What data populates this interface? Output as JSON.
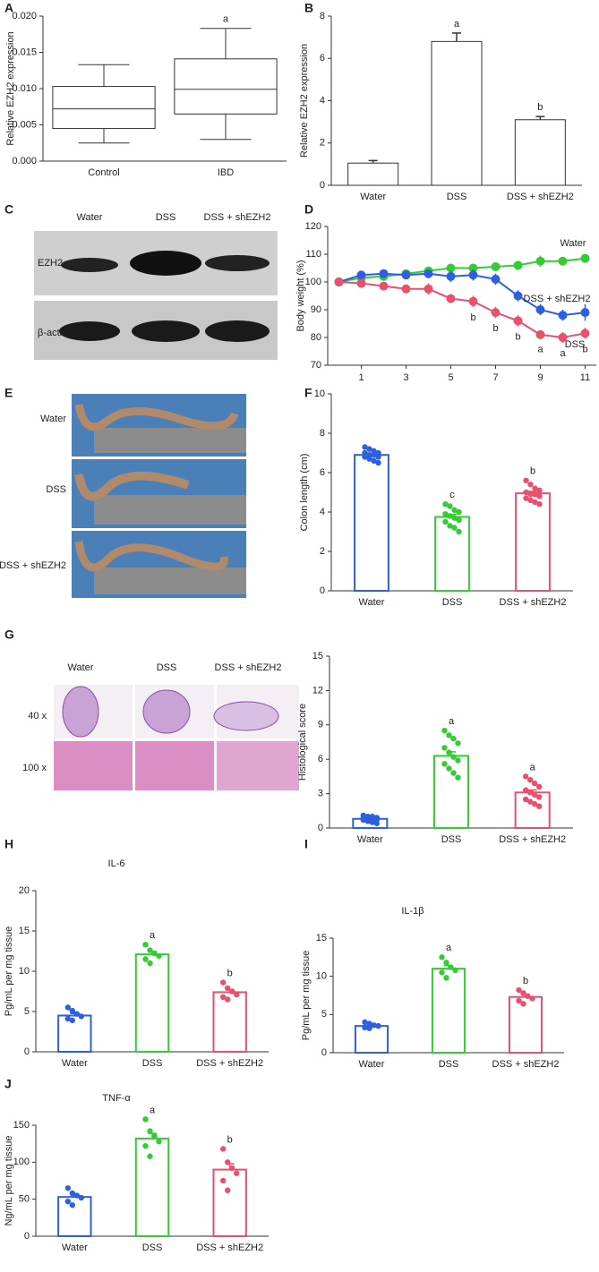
{
  "panel_labels": [
    "A",
    "B",
    "C",
    "D",
    "E",
    "F",
    "G",
    "H",
    "I",
    "J"
  ],
  "blot": {
    "lanes": [
      "Water",
      "DSS",
      "DSS + shEZH2"
    ],
    "rows": [
      "EZH2",
      "β-actin"
    ]
  },
  "colon_photo": {
    "labels": [
      "Water",
      "DSS",
      "DSS + shEZH2"
    ]
  },
  "histology": {
    "columns": [
      "Water",
      "DSS",
      "DSS + shEZH2"
    ],
    "rows": [
      "40 x",
      "100 x"
    ]
  },
  "chart_data": [
    {
      "type": "box",
      "y_label": "Relative EZH2 expression",
      "categories": [
        "Control",
        "IBD"
      ],
      "stats": [
        {
          "min": 0.0025,
          "q1": 0.0045,
          "median": 0.0072,
          "q3": 0.0103,
          "max": 0.0133
        },
        {
          "min": 0.003,
          "q1": 0.0065,
          "median": 0.0099,
          "q3": 0.0141,
          "max": 0.0183
        }
      ],
      "annotations": [
        null,
        "a"
      ],
      "color": "#333333",
      "ylim": [
        0,
        0.02
      ],
      "yticks": [
        {
          "value": 0,
          "label": "0.000"
        },
        {
          "value": 0.005,
          "label": "0.005"
        },
        {
          "value": 0.01,
          "label": "0.010"
        },
        {
          "value": 0.015,
          "label": "0.015"
        },
        {
          "value": 0.02,
          "label": "0.020"
        }
      ]
    },
    {
      "type": "bar",
      "y_label": "Relative EZH2 expression",
      "categories": [
        "Water",
        "DSS",
        "DSS + shEZH2"
      ],
      "values": [
        1.05,
        6.8,
        3.1
      ],
      "errors": [
        0.12,
        0.4,
        0.15
      ],
      "annotations": [
        null,
        "a",
        "b"
      ],
      "color": "#333333",
      "ylim": [
        0,
        8
      ],
      "yticks": [
        0,
        2,
        4,
        6,
        8
      ]
    },
    {
      "type": "line",
      "y_label": "Body weight (%)",
      "x": [
        0,
        1,
        2,
        3,
        4,
        5,
        6,
        7,
        8,
        9,
        10,
        11
      ],
      "series": [
        {
          "name": "Water",
          "color": "#33cc33",
          "values": [
            100,
            101.5,
            102,
            103,
            104,
            105,
            105,
            105.5,
            106,
            107.5,
            107.5,
            108.5
          ],
          "errors": [
            0.5,
            1,
            1,
            1.5,
            1.5,
            1.5,
            1.5,
            1.5,
            1.5,
            2,
            1.5,
            1.5
          ]
        },
        {
          "name": "DSS + shEZH2",
          "color": "#2e5fe0",
          "values": [
            100,
            102.5,
            103,
            102.5,
            103,
            102,
            102.5,
            101,
            95,
            90,
            88,
            89
          ],
          "errors": [
            0.5,
            1,
            1.5,
            1.5,
            1.5,
            2,
            2,
            2,
            2,
            2,
            2,
            3
          ]
        },
        {
          "name": "DSS",
          "color": "#e8506e",
          "values": [
            100,
            99.5,
            98.5,
            97.5,
            97.5,
            94,
            93,
            89,
            86,
            81,
            80,
            81.5
          ],
          "errors": [
            0.5,
            1,
            1.5,
            1.5,
            2,
            1.5,
            2,
            2,
            2,
            1.5,
            2,
            2
          ]
        }
      ],
      "annotations": [
        {
          "x": 6,
          "text": "b"
        },
        {
          "x": 7,
          "text": "b"
        },
        {
          "x": 8,
          "text": "b"
        },
        {
          "x": 9,
          "text": "a"
        },
        {
          "x": 10,
          "text": "a"
        },
        {
          "x": 11,
          "text": "b"
        }
      ],
      "xlim": [
        -0.5,
        11.5
      ],
      "xticks": [
        1,
        3,
        5,
        7,
        9,
        11
      ],
      "ylim": [
        70,
        120
      ],
      "yticks": [
        70,
        80,
        90,
        100,
        110,
        120
      ]
    },
    {
      "type": "bar",
      "y_label": "Colon length (cm)",
      "categories": [
        "Water",
        "DSS",
        "DSS + shEZH2"
      ],
      "values": [
        6.9,
        3.75,
        4.95
      ],
      "errors": [
        0.08,
        0.13,
        0.1
      ],
      "annotations": [
        null,
        "c",
        "b"
      ],
      "colors": [
        "#2e5fe0",
        "#33cc33",
        "#e8506e"
      ],
      "points": [
        [
          7.3,
          7.2,
          7.1,
          7.0,
          7.0,
          6.9,
          6.9,
          6.8,
          6.8,
          6.7,
          6.6,
          6.5
        ],
        [
          4.4,
          4.3,
          4.1,
          4.0,
          3.9,
          3.8,
          3.7,
          3.6,
          3.5,
          3.3,
          3.2,
          3.0
        ],
        [
          5.6,
          5.4,
          5.2,
          5.1,
          5.0,
          4.9,
          4.9,
          4.8,
          4.7,
          4.6,
          4.5,
          4.4
        ]
      ],
      "ylim": [
        0,
        10
      ],
      "yticks": [
        0,
        2,
        4,
        6,
        8,
        10
      ]
    },
    {
      "type": "bar",
      "y_label": "Histological score",
      "categories": [
        "Water",
        "DSS",
        "DSS + shEZH2"
      ],
      "values": [
        0.8,
        6.3,
        3.1
      ],
      "errors": [
        0.08,
        0.35,
        0.22
      ],
      "annotations": [
        null,
        "a",
        "a"
      ],
      "colors": [
        "#2e5fe0",
        "#33cc33",
        "#e8506e"
      ],
      "points": [
        [
          1.1,
          1.0,
          1.0,
          0.9,
          0.9,
          0.8,
          0.8,
          0.7,
          0.7,
          0.6,
          0.5,
          0.4
        ],
        [
          8.5,
          8.1,
          7.8,
          7.4,
          7.0,
          6.6,
          6.2,
          5.9,
          5.6,
          5.2,
          4.8,
          4.4
        ],
        [
          4.5,
          4.2,
          3.9,
          3.6,
          3.3,
          3.1,
          2.9,
          2.7,
          2.5,
          2.3,
          2.1,
          1.9
        ]
      ],
      "ylim": [
        0,
        15
      ],
      "yticks": [
        0,
        3,
        6,
        9,
        12,
        15
      ]
    },
    {
      "type": "bar",
      "title": "IL-6",
      "y_label": "Pg/mL per mg tissue",
      "categories": [
        "Water",
        "DSS",
        "DSS + shEZH2"
      ],
      "values": [
        4.5,
        12.1,
        7.4
      ],
      "errors": [
        0.25,
        0.35,
        0.33
      ],
      "annotations": [
        null,
        "a",
        "b"
      ],
      "colors": [
        "#2e5fe0",
        "#33cc33",
        "#e8506e"
      ],
      "points": [
        [
          5.5,
          5.1,
          4.7,
          4.4,
          4.1,
          3.9
        ],
        [
          13.3,
          12.6,
          12.2,
          11.9,
          11.5,
          11.0
        ],
        [
          8.6,
          7.9,
          7.5,
          7.1,
          6.8,
          6.5
        ]
      ],
      "ylim": [
        0,
        20
      ],
      "yticks": [
        0,
        5,
        10,
        15,
        20
      ]
    },
    {
      "type": "bar",
      "title": "IL-1β",
      "y_label": "Pg/mL per mg tissue",
      "categories": [
        "Water",
        "DSS",
        "DSS + shEZH2"
      ],
      "values": [
        3.5,
        11,
        7.3
      ],
      "errors": [
        0.13,
        0.4,
        0.3
      ],
      "annotations": [
        null,
        "a",
        "b"
      ],
      "colors": [
        "#2e5fe0",
        "#33cc33",
        "#e8506e"
      ],
      "points": [
        [
          4.0,
          3.8,
          3.6,
          3.5,
          3.3,
          3.2
        ],
        [
          12.5,
          11.8,
          11.2,
          10.8,
          10.5,
          9.8
        ],
        [
          8.2,
          7.8,
          7.4,
          7.1,
          6.8,
          6.4
        ]
      ],
      "ylim": [
        0,
        15
      ],
      "yticks": [
        0,
        5,
        10,
        15
      ]
    },
    {
      "type": "bar",
      "title": "TNF-α",
      "y_label": "Ng/mL per mg tissue",
      "categories": [
        "Water",
        "DSS",
        "DSS + shEZH2"
      ],
      "values": [
        53,
        132,
        90
      ],
      "errors": [
        4,
        7,
        8
      ],
      "annotations": [
        null,
        "a",
        "b"
      ],
      "colors": [
        "#2e5fe0",
        "#33cc33",
        "#e8506e"
      ],
      "points": [
        [
          65,
          58,
          55,
          52,
          47,
          42
        ],
        [
          158,
          142,
          135,
          128,
          122,
          108
        ],
        [
          118,
          100,
          92,
          85,
          75,
          62
        ]
      ],
      "ylim": [
        0,
        150
      ],
      "yticks": [
        0,
        50,
        100,
        150
      ]
    }
  ]
}
